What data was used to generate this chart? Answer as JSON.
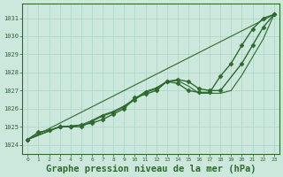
{
  "bg_color": "#cce8dd",
  "grid_color": "#aad4c8",
  "line_color": "#2d6a2d",
  "marker_color": "#2d6a2d",
  "xlabel": "Graphe pression niveau de la mer (hPa)",
  "xlabel_fontsize": 7.5,
  "xlim": [
    -0.5,
    23.5
  ],
  "ylim": [
    1023.5,
    1031.8
  ],
  "yticks": [
    1024,
    1025,
    1026,
    1027,
    1028,
    1029,
    1030,
    1031
  ],
  "xticks": [
    0,
    1,
    2,
    3,
    4,
    5,
    6,
    7,
    8,
    9,
    10,
    11,
    12,
    13,
    14,
    15,
    16,
    17,
    18,
    19,
    20,
    21,
    22,
    23
  ],
  "series": [
    {
      "x": [
        0,
        1,
        2,
        3,
        4,
        5,
        6,
        7,
        8,
        9,
        10,
        11,
        12,
        13,
        14,
        15,
        16,
        17,
        18,
        19,
        20,
        21,
        22,
        23
      ],
      "y": [
        1024.3,
        1024.7,
        1024.8,
        1025.0,
        1025.0,
        1025.1,
        1025.2,
        1025.4,
        1025.7,
        1026.0,
        1026.6,
        1026.8,
        1027.0,
        1027.5,
        1027.4,
        1027.0,
        1026.9,
        1026.9,
        1027.8,
        1028.5,
        1029.5,
        1030.4,
        1031.0,
        1031.2
      ],
      "marker": "D",
      "markersize": 2.5,
      "linewidth": 1.0
    },
    {
      "x": [
        0,
        3,
        4,
        5,
        6,
        7,
        8,
        9,
        10,
        11,
        12,
        13,
        14,
        15,
        16,
        17,
        18,
        20,
        21,
        22,
        23
      ],
      "y": [
        1024.3,
        1025.0,
        1025.0,
        1025.0,
        1025.3,
        1025.6,
        1025.8,
        1026.1,
        1026.5,
        1026.9,
        1027.1,
        1027.5,
        1027.6,
        1027.5,
        1027.1,
        1027.0,
        1027.0,
        1028.5,
        1029.5,
        1030.5,
        1031.2
      ],
      "marker": "D",
      "markersize": 2.5,
      "linewidth": 1.0
    },
    {
      "x": [
        0,
        3,
        4,
        5,
        6,
        7,
        8,
        9,
        10,
        11,
        12,
        13,
        14,
        15,
        16,
        17,
        18,
        19,
        20,
        21,
        22,
        23
      ],
      "y": [
        1024.3,
        1025.0,
        1025.05,
        1025.1,
        1025.35,
        1025.65,
        1025.85,
        1026.15,
        1026.55,
        1026.95,
        1027.15,
        1027.5,
        1027.55,
        1027.25,
        1026.85,
        1026.85,
        1026.85,
        1027.0,
        1027.85,
        1028.85,
        1029.85,
        1031.2
      ],
      "marker": "",
      "markersize": 0,
      "linewidth": 0.8
    },
    {
      "x": [
        0,
        23
      ],
      "y": [
        1024.3,
        1031.2
      ],
      "marker": "",
      "markersize": 0,
      "linewidth": 0.8
    }
  ]
}
